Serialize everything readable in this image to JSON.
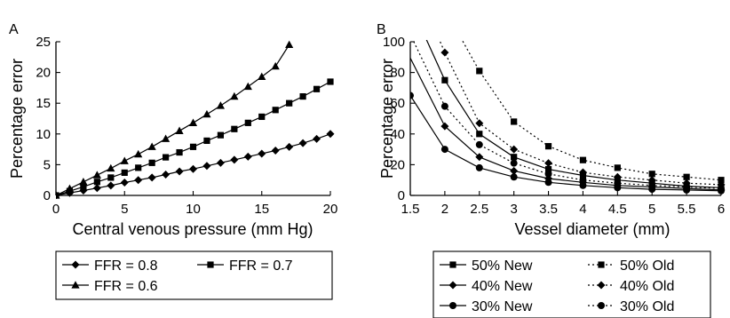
{
  "chart_data": [
    {
      "panel_label": "A",
      "type": "line",
      "xlabel": "Central venous pressure (mm Hg)",
      "ylabel": "Percentage error",
      "xlim": [
        0,
        20
      ],
      "ylim": [
        0,
        25
      ],
      "xticks": [
        "0",
        "5",
        "10",
        "15",
        "20"
      ],
      "yticks": [
        "0",
        "5",
        "10",
        "15",
        "20",
        "25"
      ],
      "grid": false,
      "legend_position": "bottom",
      "series": [
        {
          "name": "FFR = 0.8",
          "marker": "diamond",
          "line": "solid",
          "x": [
            0,
            1,
            2,
            3,
            4,
            5,
            6,
            7,
            8,
            9,
            10,
            11,
            12,
            13,
            14,
            15,
            16,
            17,
            18,
            19,
            20
          ],
          "y": [
            0,
            0.4,
            0.8,
            1.2,
            1.6,
            2.1,
            2.5,
            2.9,
            3.4,
            3.9,
            4.3,
            4.8,
            5.3,
            5.8,
            6.3,
            6.8,
            7.3,
            7.9,
            8.5,
            9.2,
            10.0
          ]
        },
        {
          "name": "FFR = 0.7",
          "marker": "square",
          "line": "solid",
          "x": [
            0,
            1,
            2,
            3,
            4,
            5,
            6,
            7,
            8,
            9,
            10,
            11,
            12,
            13,
            14,
            15,
            16,
            17,
            18,
            19,
            20
          ],
          "y": [
            0,
            0.7,
            1.4,
            2.2,
            2.9,
            3.7,
            4.5,
            5.3,
            6.2,
            7.0,
            7.9,
            8.9,
            9.8,
            10.8,
            11.8,
            12.8,
            13.9,
            15.0,
            16.1,
            17.3,
            18.5
          ]
        },
        {
          "name": "FFR = 0.6",
          "marker": "triangle",
          "line": "solid",
          "x": [
            0,
            1,
            2,
            3,
            4,
            5,
            6,
            7,
            8,
            9,
            10,
            11,
            12,
            13,
            14,
            15,
            16,
            17
          ],
          "y": [
            0,
            1.1,
            2.2,
            3.3,
            4.4,
            5.6,
            6.7,
            7.9,
            9.2,
            10.5,
            11.8,
            13.2,
            14.6,
            16.1,
            17.7,
            19.3,
            21.0,
            24.5
          ]
        }
      ]
    },
    {
      "panel_label": "B",
      "type": "line",
      "xlabel": "Vessel diameter (mm)",
      "ylabel": "Percentage error",
      "xlim": [
        1.5,
        6
      ],
      "ylim": [
        0,
        100
      ],
      "xticks": [
        "1.5",
        "2",
        "2.5",
        "3",
        "3.5",
        "4",
        "4.5",
        "5",
        "5.5",
        "6"
      ],
      "yticks": [
        "0",
        "20",
        "40",
        "60",
        "80",
        "100"
      ],
      "grid": false,
      "legend_position": "bottom",
      "series": [
        {
          "name": "50% New",
          "marker": "square",
          "line": "solid",
          "x": [
            2,
            2.5,
            3,
            3.5,
            4,
            4.5,
            5,
            5.5,
            6
          ],
          "y": [
            75,
            40,
            25,
            17,
            13,
            10,
            8,
            6,
            5
          ]
        },
        {
          "name": "40% New",
          "marker": "diamond",
          "line": "solid",
          "x": [
            2,
            2.5,
            3,
            3.5,
            4,
            4.5,
            5,
            5.5,
            6
          ],
          "y": [
            45,
            25,
            16,
            11,
            8.5,
            6.5,
            5.5,
            4.5,
            3.5
          ]
        },
        {
          "name": "30% New",
          "marker": "circle",
          "line": "solid",
          "x": [
            1.5,
            2,
            2.5,
            3,
            3.5,
            4,
            4.5,
            5,
            5.5,
            6
          ],
          "y": [
            65,
            30,
            18,
            12,
            8.5,
            6.5,
            5,
            4,
            3.5,
            3
          ]
        },
        {
          "name": "50% Old",
          "marker": "square",
          "line": "dotted",
          "x": [
            2.5,
            3,
            3.5,
            4,
            4.5,
            5,
            5.5,
            6
          ],
          "y": [
            81,
            48,
            32,
            23,
            18,
            14,
            12,
            10
          ]
        },
        {
          "name": "40% Old",
          "marker": "diamond",
          "line": "dotted",
          "x": [
            2,
            2.5,
            3,
            3.5,
            4,
            4.5,
            5,
            5.5,
            6
          ],
          "y": [
            93,
            47,
            30,
            21,
            15,
            12,
            10,
            8,
            7
          ]
        },
        {
          "name": "30% Old",
          "marker": "circle",
          "line": "dotted",
          "x": [
            2,
            2.5,
            3,
            3.5,
            4,
            4.5,
            5,
            5.5,
            6
          ],
          "y": [
            58,
            33,
            21,
            14,
            10,
            8,
            6.5,
            5.5,
            4.5
          ]
        }
      ]
    }
  ]
}
